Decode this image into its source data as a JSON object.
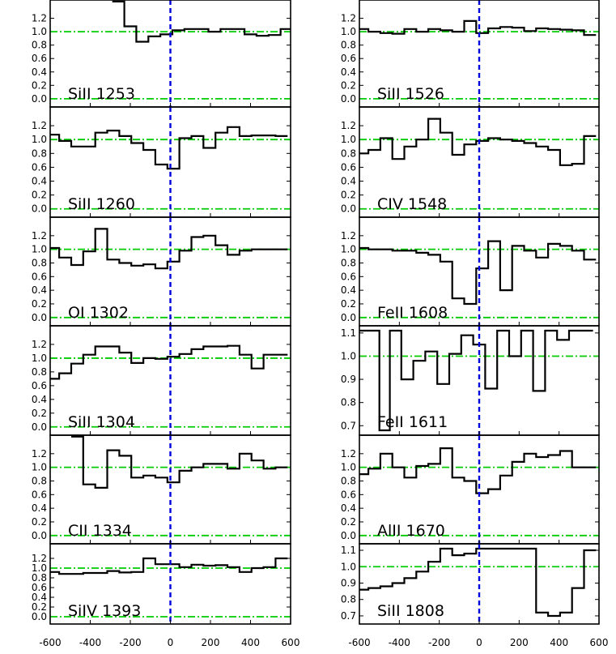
{
  "chart_data": {
    "type": "line",
    "layout": "2 columns x 6 rows of stacked velocity panels",
    "shared_x_axis": {
      "xlim": [
        -600,
        600
      ],
      "tick_labels": [
        "-600",
        "-400",
        "-200",
        "0",
        "200",
        "400",
        "600"
      ],
      "step_plot": true
    },
    "reference_lines": {
      "horizontal": [
        0.0,
        1.0
      ],
      "horizontal_color": "#00cc00",
      "vertical": [
        0
      ],
      "vertical_color": "#0000dd"
    },
    "columns": [
      [
        {
          "label": "SiII 1253",
          "ylim": [
            -0.05,
            1.4
          ],
          "yticks": [
            "0.0",
            "0.2",
            "0.4",
            "0.6",
            "0.8",
            "1.0",
            "1.2"
          ],
          "x": [
            -260,
            -200,
            -140,
            -80,
            -20,
            40,
            100,
            160,
            220,
            280,
            340,
            400,
            460,
            520,
            580
          ],
          "y": [
            1.45,
            1.08,
            0.85,
            0.93,
            0.96,
            1.02,
            1.04,
            1.04,
            1.0,
            1.04,
            1.04,
            0.96,
            0.94,
            0.95,
            1.04
          ]
        },
        {
          "label": "SiII 1260",
          "ylim": [
            -0.05,
            1.4
          ],
          "yticks": [
            "0.0",
            "0.2",
            "0.4",
            "0.6",
            "0.8",
            "1.0",
            "1.2"
          ],
          "x": [
            -585,
            -525,
            -465,
            -405,
            -345,
            -285,
            -225,
            -165,
            -105,
            -45,
            15,
            75,
            135,
            195,
            255,
            315,
            375,
            435,
            495,
            555
          ],
          "y": [
            1.07,
            0.98,
            0.9,
            0.9,
            1.1,
            1.13,
            1.05,
            0.95,
            0.85,
            0.64,
            0.58,
            1.02,
            1.05,
            0.88,
            1.1,
            1.18,
            1.05,
            1.06,
            1.06,
            1.05
          ]
        },
        {
          "label": "OI 1302",
          "ylim": [
            -0.05,
            1.4
          ],
          "yticks": [
            "0.0",
            "0.2",
            "0.4",
            "0.6",
            "0.8",
            "1.0",
            "1.2"
          ],
          "x": [
            -585,
            -525,
            -465,
            -405,
            -345,
            -285,
            -225,
            -165,
            -105,
            -45,
            15,
            75,
            135,
            195,
            255,
            315,
            375,
            435,
            495,
            555
          ],
          "y": [
            1.02,
            0.88,
            0.77,
            0.97,
            1.3,
            0.85,
            0.8,
            0.76,
            0.78,
            0.72,
            0.82,
            0.98,
            1.18,
            1.2,
            1.06,
            0.92,
            0.98,
            1.0,
            1.0,
            1.0
          ]
        },
        {
          "label": "SiII 1304",
          "ylim": [
            -0.05,
            1.4
          ],
          "yticks": [
            "0.0",
            "0.2",
            "0.4",
            "0.6",
            "0.8",
            "1.0",
            "1.2"
          ],
          "x": [
            -585,
            -525,
            -465,
            -405,
            -345,
            -285,
            -225,
            -165,
            -105,
            -45,
            15,
            75,
            135,
            195,
            255,
            315,
            375,
            435,
            495,
            555
          ],
          "y": [
            0.7,
            0.78,
            0.92,
            1.05,
            1.17,
            1.17,
            1.08,
            0.93,
            1.0,
            0.99,
            1.02,
            1.06,
            1.13,
            1.17,
            1.17,
            1.18,
            1.05,
            0.85,
            1.05,
            1.05
          ]
        },
        {
          "label": "CII 1334",
          "ylim": [
            -0.05,
            1.4
          ],
          "yticks": [
            "0.0",
            "0.2",
            "0.4",
            "0.6",
            "0.8",
            "1.0",
            "1.2"
          ],
          "x": [
            -465,
            -405,
            -345,
            -285,
            -225,
            -165,
            -105,
            -45,
            15,
            75,
            135,
            195,
            255,
            315,
            375,
            435,
            495,
            555
          ],
          "y": [
            1.45,
            0.75,
            0.7,
            1.25,
            1.17,
            0.85,
            0.88,
            0.85,
            0.78,
            0.95,
            1.0,
            1.05,
            1.05,
            0.98,
            1.2,
            1.1,
            0.98,
            1.0
          ]
        },
        {
          "label": "SiIV 1393",
          "ylim": [
            -0.05,
            1.4
          ],
          "yticks": [
            "0.0",
            "0.2",
            "0.4",
            "0.6",
            "0.8",
            "1.0",
            "1.2"
          ],
          "x": [
            -585,
            -525,
            -465,
            -405,
            -345,
            -285,
            -225,
            -165,
            -105,
            -45,
            15,
            75,
            135,
            195,
            255,
            315,
            375,
            435,
            495,
            555
          ],
          "y": [
            0.92,
            0.88,
            0.88,
            0.9,
            0.9,
            0.94,
            0.91,
            0.92,
            1.2,
            1.08,
            1.08,
            1.02,
            1.07,
            1.05,
            1.06,
            1.02,
            0.92,
            1.0,
            1.02,
            1.2
          ]
        }
      ],
      [
        {
          "label": "SiII 1526",
          "ylim": [
            -0.05,
            1.4
          ],
          "yticks": [
            "0.0",
            "0.2",
            "0.4",
            "0.6",
            "0.8",
            "1.0",
            "1.2"
          ],
          "x": [
            -585,
            -525,
            -465,
            -405,
            -345,
            -285,
            -225,
            -165,
            -105,
            -45,
            15,
            75,
            135,
            195,
            255,
            315,
            375,
            435,
            495,
            555
          ],
          "y": [
            1.04,
            1.0,
            0.98,
            0.97,
            1.04,
            1.0,
            1.04,
            1.02,
            1.0,
            1.16,
            0.98,
            1.05,
            1.07,
            1.06,
            1.01,
            1.05,
            1.04,
            1.03,
            1.02,
            0.95
          ]
        },
        {
          "label": "CIV 1548",
          "ylim": [
            -0.05,
            1.4
          ],
          "yticks": [
            "0.0",
            "0.2",
            "0.4",
            "0.6",
            "0.8",
            "1.0",
            "1.2"
          ],
          "x": [
            -585,
            -525,
            -465,
            -405,
            -345,
            -285,
            -225,
            -165,
            -105,
            -45,
            15,
            75,
            135,
            195,
            255,
            315,
            375,
            435,
            495,
            555
          ],
          "y": [
            0.8,
            0.85,
            1.02,
            0.72,
            0.9,
            1.0,
            1.3,
            1.1,
            0.78,
            0.93,
            0.98,
            1.02,
            1.0,
            0.98,
            0.95,
            0.9,
            0.85,
            0.63,
            0.65,
            1.05
          ]
        },
        {
          "label": "FeII 1608",
          "ylim": [
            -0.05,
            1.4
          ],
          "yticks": [
            "0.0",
            "0.2",
            "0.4",
            "0.6",
            "0.8",
            "1.0",
            "1.2"
          ],
          "x": [
            -585,
            -525,
            -465,
            -405,
            -345,
            -285,
            -225,
            -165,
            -105,
            -45,
            15,
            75,
            135,
            195,
            255,
            315,
            375,
            435,
            495,
            555
          ],
          "y": [
            1.02,
            1.0,
            1.0,
            0.98,
            0.98,
            0.95,
            0.92,
            0.82,
            0.28,
            0.2,
            0.72,
            1.12,
            0.4,
            1.05,
            0.98,
            0.88,
            1.08,
            1.05,
            0.98,
            0.85
          ]
        },
        {
          "label": "FeII 1611",
          "ylim": [
            0.68,
            1.11
          ],
          "yticks": [
            "0.7",
            "0.8",
            "0.9",
            "1.0",
            "1.1"
          ],
          "x": [
            -585,
            -525,
            -475,
            -420,
            -360,
            -300,
            -240,
            -180,
            -120,
            -60,
            0,
            60,
            120,
            180,
            240,
            300,
            360,
            420,
            480,
            540
          ],
          "y": [
            1.11,
            1.11,
            0.68,
            1.11,
            0.9,
            0.98,
            1.02,
            0.88,
            1.01,
            1.09,
            1.05,
            0.86,
            1.11,
            1.0,
            1.11,
            0.85,
            1.11,
            1.07,
            1.11,
            1.11
          ]
        },
        {
          "label": "AlII 1670",
          "ylim": [
            -0.05,
            1.4
          ],
          "yticks": [
            "0.0",
            "0.2",
            "0.4",
            "0.6",
            "0.8",
            "1.0",
            "1.2"
          ],
          "x": [
            -585,
            -525,
            -465,
            -405,
            -345,
            -285,
            -225,
            -165,
            -105,
            -45,
            15,
            75,
            135,
            195,
            255,
            315,
            375,
            435,
            495,
            555
          ],
          "y": [
            0.9,
            0.98,
            1.2,
            1.0,
            0.85,
            1.02,
            1.05,
            1.28,
            0.85,
            0.8,
            0.62,
            0.68,
            0.88,
            1.08,
            1.2,
            1.15,
            1.18,
            1.24,
            1.0,
            1.0
          ]
        },
        {
          "label": "SiII 1808",
          "ylim": [
            0.68,
            1.11
          ],
          "yticks": [
            "0.7",
            "0.8",
            "0.9",
            "1.0",
            "1.1"
          ],
          "x": [
            -585,
            -525,
            -465,
            -405,
            -345,
            -285,
            -225,
            -165,
            -105,
            -45,
            15,
            75,
            135,
            195,
            255,
            315,
            375,
            435,
            495,
            555
          ],
          "y": [
            0.86,
            0.87,
            0.88,
            0.9,
            0.93,
            0.97,
            1.03,
            1.11,
            1.07,
            1.08,
            1.11,
            1.11,
            1.11,
            1.11,
            1.11,
            0.72,
            0.7,
            0.72,
            0.87,
            1.1
          ]
        }
      ]
    ]
  }
}
